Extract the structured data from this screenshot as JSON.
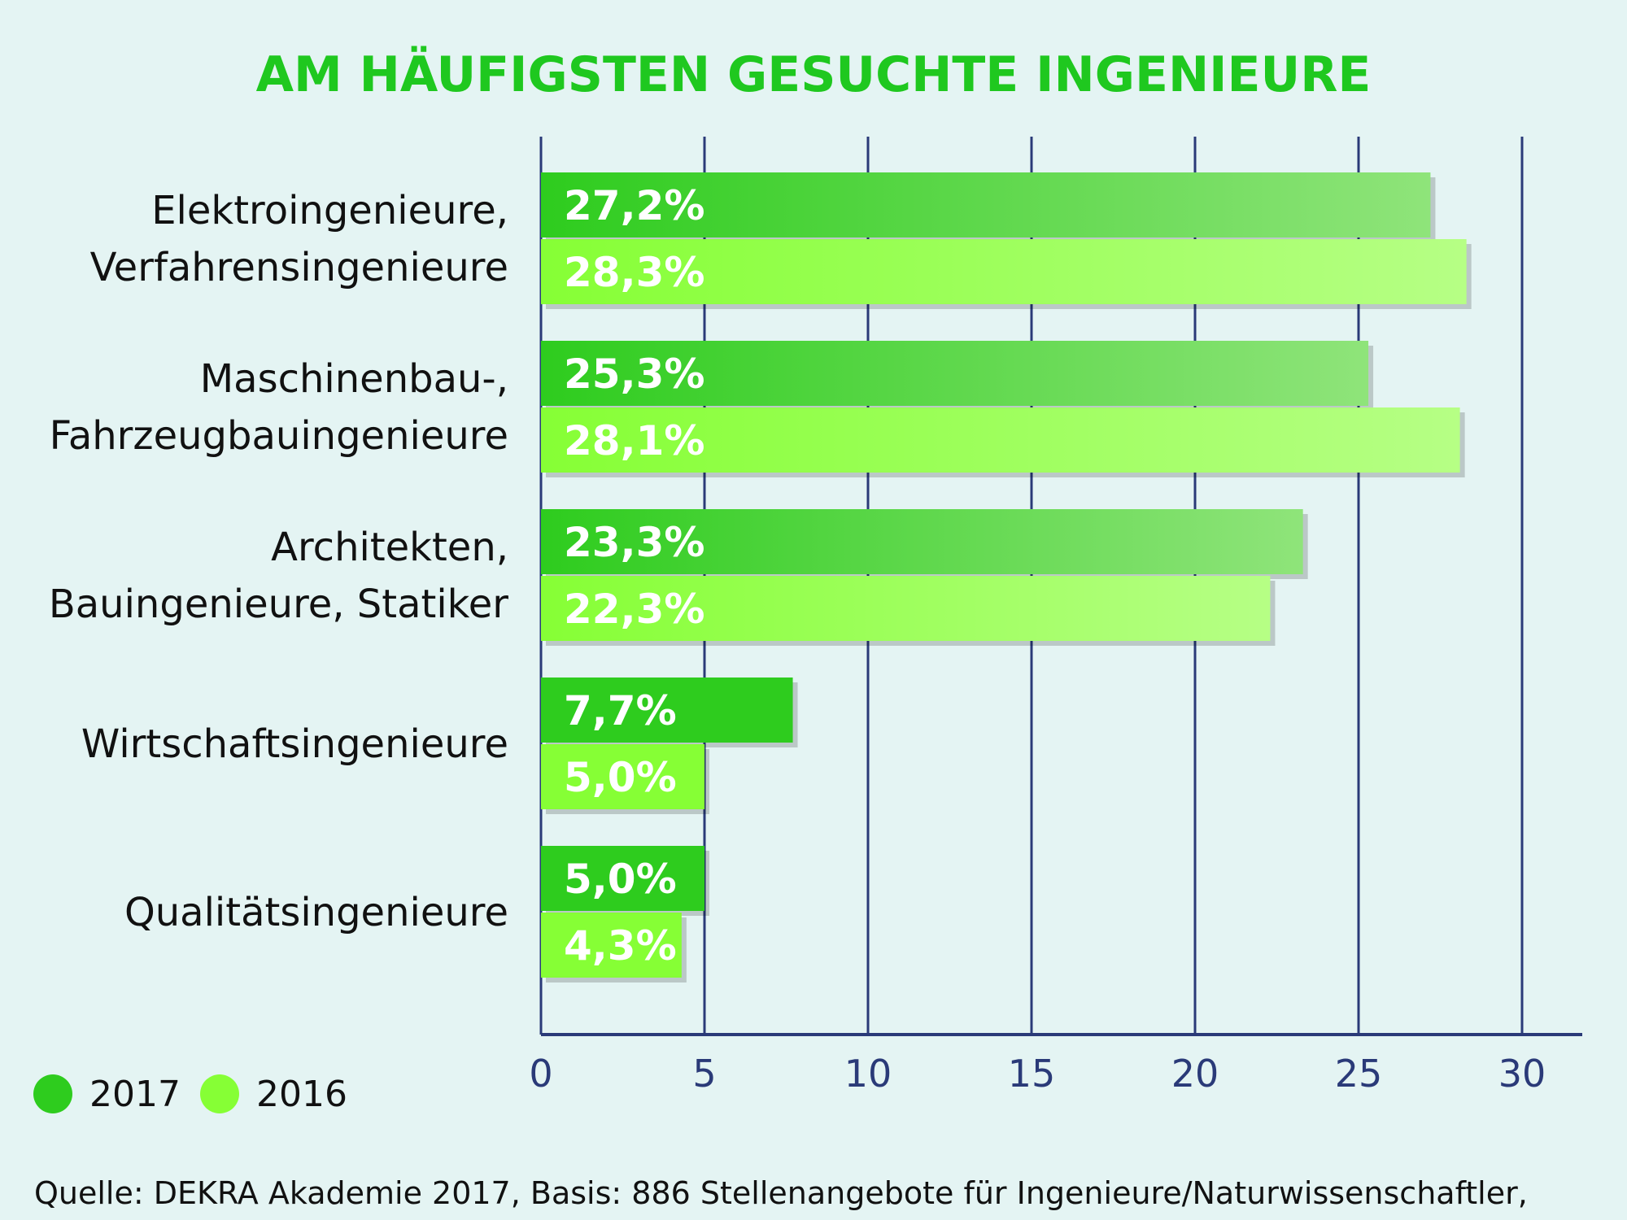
{
  "chart_data": {
    "type": "bar",
    "orientation": "horizontal",
    "title": "AM HÄUFIGSTEN GESUCHTE INGENIEURE",
    "categories": [
      [
        "Elektroingenieure,",
        "Verfahrensingenieure"
      ],
      [
        "Maschinenbau-,",
        "Fahrzeugbauingenieure"
      ],
      [
        "Architekten,",
        "Bauingenieure, Statiker"
      ],
      [
        "Wirtschaftsingenieure"
      ],
      [
        "Qualitätsingenieure"
      ]
    ],
    "series": [
      {
        "name": "2017",
        "color": "#2ecc1e",
        "values": [
          27.2,
          25.3,
          23.3,
          7.7,
          5.0
        ],
        "labels": [
          "27,2%",
          "25,3%",
          "23,3%",
          "7,7%",
          "5,0%"
        ]
      },
      {
        "name": "2016",
        "color": "#86ff35",
        "values": [
          28.3,
          28.1,
          22.3,
          5.0,
          4.3
        ],
        "labels": [
          "28,3%",
          "28,1%",
          "22,3%",
          "5,0%",
          "4,3%"
        ]
      }
    ],
    "xlim": [
      0,
      30
    ],
    "xticks": [
      "0",
      "5",
      "10",
      "15",
      "20",
      "25",
      "30"
    ],
    "grid": true,
    "legend_position": "bottom-left",
    "source": "Quelle: DEKRA Akademie 2017, Basis: 886 Stellenangebote für Ingenieure/Naturwissenschaftler,"
  }
}
